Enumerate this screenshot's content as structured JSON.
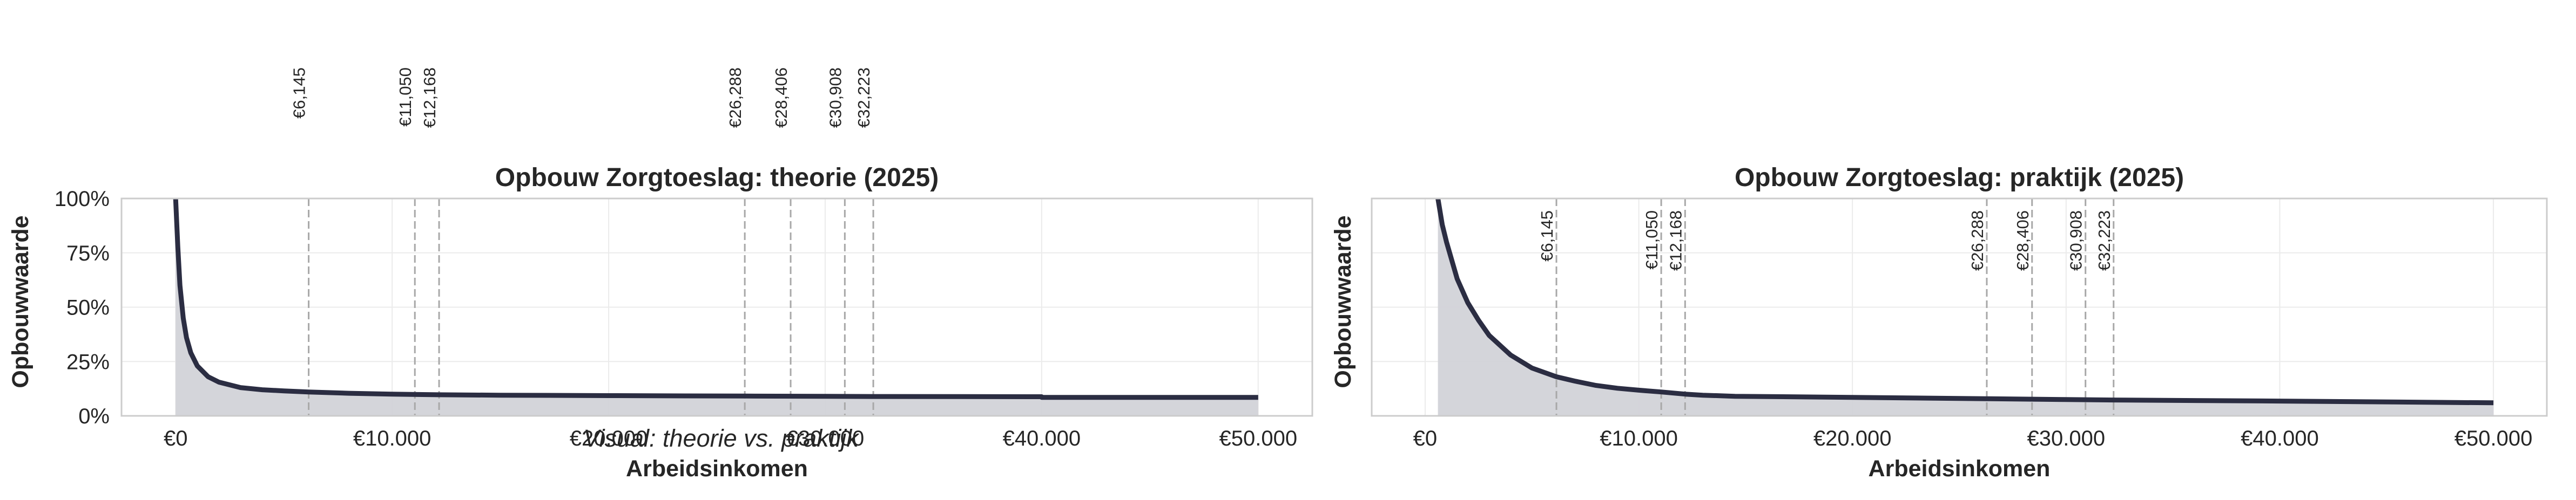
{
  "figure_note": "Visual: theorie vs. praktijk",
  "chart_data": [
    {
      "type": "area",
      "title": "Opbouw Zorgtoeslag: theorie (2025)",
      "xlabel": "Arbeidsinkomen",
      "ylabel": "Opbouwwaarde",
      "xlim": [
        -2500,
        52500
      ],
      "ylim": [
        0,
        1
      ],
      "x_ticks": [
        0,
        10000,
        20000,
        30000,
        40000,
        50000
      ],
      "x_tick_labels": [
        "€0",
        "€10.000",
        "€20.000",
        "€30.000",
        "€40.000",
        "€50.000"
      ],
      "y_ticks": [
        0,
        0.25,
        0.5,
        0.75,
        1.0
      ],
      "y_tick_labels": [
        "0%",
        "25%",
        "50%",
        "75%",
        "100%"
      ],
      "grid": true,
      "line_color": "#2b2d42",
      "fill_color": "#d2d3d8",
      "marker_color": "#a8a8a8",
      "threshold_labels_position": "above",
      "thresholds": [
        {
          "x": 6145,
          "label": "€6,145"
        },
        {
          "x": 11050,
          "label": "€11,050"
        },
        {
          "x": 12168,
          "label": "€12,168"
        },
        {
          "x": 26288,
          "label": "€26,288"
        },
        {
          "x": 28406,
          "label": "€28,406"
        },
        {
          "x": 30908,
          "label": "€30,908"
        },
        {
          "x": 32223,
          "label": "€32,223"
        }
      ],
      "series": [
        {
          "x": [
            0,
            100,
            200,
            350,
            500,
            700,
            1000,
            1500,
            2000,
            3000,
            4000,
            5000,
            6145,
            8000,
            10000,
            12168,
            15000,
            20000,
            26288,
            30000,
            32223,
            40000,
            40001,
            50000
          ],
          "values": [
            1.0,
            0.78,
            0.6,
            0.45,
            0.36,
            0.29,
            0.23,
            0.18,
            0.155,
            0.13,
            0.12,
            0.115,
            0.11,
            0.104,
            0.1,
            0.097,
            0.095,
            0.093,
            0.091,
            0.09,
            0.089,
            0.088,
            0.085,
            0.085
          ]
        }
      ]
    },
    {
      "type": "area",
      "title": "Opbouw Zorgtoeslag: praktijk (2025)",
      "xlabel": "Arbeidsinkomen",
      "ylabel": "Opbouwwaarde",
      "xlim": [
        -2500,
        52500
      ],
      "ylim": [
        0,
        1
      ],
      "x_ticks": [
        0,
        10000,
        20000,
        30000,
        40000,
        50000
      ],
      "x_tick_labels": [
        "€0",
        "€10.000",
        "€20.000",
        "€30.000",
        "€40.000",
        "€50.000"
      ],
      "y_ticks": [
        0,
        0.25,
        0.5,
        0.75,
        1.0
      ],
      "y_tick_labels": [],
      "grid": true,
      "line_color": "#2b2d42",
      "fill_color": "#d2d3d8",
      "marker_color": "#a8a8a8",
      "threshold_labels_position": "inside-top",
      "thresholds": [
        {
          "x": 6145,
          "label": "€6,145"
        },
        {
          "x": 11050,
          "label": "€11,050"
        },
        {
          "x": 12168,
          "label": "€12,168"
        },
        {
          "x": 26288,
          "label": "€26,288"
        },
        {
          "x": 28406,
          "label": "€28,406"
        },
        {
          "x": 30908,
          "label": "€30,908"
        },
        {
          "x": 32223,
          "label": "€32,223"
        }
      ],
      "series": [
        {
          "x": [
            600,
            800,
            1000,
            1500,
            2000,
            2500,
            3000,
            4000,
            5000,
            6145,
            7000,
            8000,
            9000,
            10000,
            11050,
            12168,
            13000,
            14500,
            20000,
            26288,
            30000,
            32223,
            40000,
            50000
          ],
          "values": [
            1.0,
            0.88,
            0.8,
            0.63,
            0.52,
            0.44,
            0.37,
            0.28,
            0.22,
            0.18,
            0.16,
            0.14,
            0.127,
            0.118,
            0.11,
            0.1,
            0.095,
            0.09,
            0.085,
            0.079,
            0.075,
            0.073,
            0.068,
            0.06
          ]
        }
      ]
    }
  ]
}
